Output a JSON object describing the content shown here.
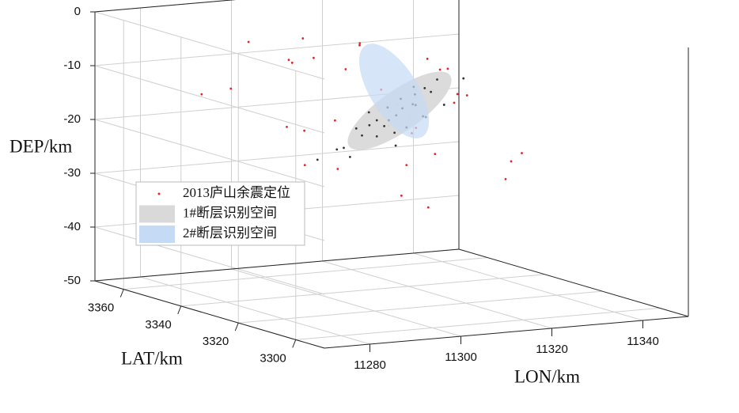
{
  "chart_data": {
    "type": "scatter3d",
    "xlabel": "LON/km",
    "ylabel": "LAT/km",
    "zlabel": "DEP/km",
    "xlim": [
      11270,
      11350
    ],
    "ylim": [
      3370,
      3290
    ],
    "zlim": [
      -50,
      0
    ],
    "xticks": [
      11280,
      11300,
      11320,
      11340
    ],
    "yticks": [
      3300,
      3320,
      3340,
      3360
    ],
    "zticks": [
      0,
      -10,
      -20,
      -30,
      -40,
      -50
    ],
    "grid": true,
    "legend": "center left",
    "series": [
      {
        "name": "2013庐山余震定位",
        "color": "#e0262b",
        "x": [
          11296,
          11305,
          11318,
          11288,
          11312,
          11325,
          11300,
          11309,
          11292,
          11315,
          11322,
          11303,
          11284,
          11311,
          11330,
          11298,
          11307,
          11319,
          11290,
          11314,
          11326,
          11302,
          11295,
          11316,
          11308,
          11335,
          11286,
          11313,
          11321,
          11299,
          11304,
          11317,
          11293,
          11310,
          11328,
          11301,
          11306,
          11320,
          11289,
          11312
        ],
        "y": [
          3335,
          3320,
          3340,
          3345,
          3328,
          3332,
          3350,
          3325,
          3338,
          3315,
          3342,
          3330,
          3355,
          3336,
          3322,
          3327,
          3345,
          3318,
          3330,
          3340,
          3310,
          3352,
          3325,
          3333,
          3338,
          3328,
          3348,
          3322,
          3335,
          3343,
          3312,
          3326,
          3334,
          3331,
          3339,
          3346,
          3324,
          3329,
          3341,
          3337
        ],
        "z": [
          -5,
          -12,
          -20,
          -3,
          -25,
          -15,
          -8,
          -30,
          -18,
          -10,
          -22,
          -2,
          -14,
          -16,
          -28,
          -6,
          -19,
          -11,
          -35,
          -13,
          -21,
          -9,
          -24,
          -17,
          -4,
          -26,
          -12,
          -32,
          -7,
          -20,
          -15,
          -23,
          -1,
          -18,
          -10,
          -27,
          -14,
          -8,
          -29,
          -16
        ]
      },
      {
        "name": "1#断层识别空间",
        "color": "#d9d9d9"
      },
      {
        "name": "2#断层识别空间",
        "color": "#c4daf5"
      },
      {
        "color": "#333333",
        "x": [
          11305,
          11312,
          11318,
          11308,
          11315,
          11302,
          11320,
          11310,
          11306,
          11314,
          11317,
          11309,
          11303,
          11311,
          11316,
          11307,
          11313,
          11319,
          11304,
          11310,
          11300,
          11322,
          11308,
          11312,
          11315,
          11306,
          11318,
          11309,
          11311,
          11314
        ],
        "y": [
          3330,
          3328,
          3335,
          3332,
          3326,
          3334,
          3330,
          3331,
          3336,
          3329,
          3333,
          3327,
          3338,
          3330,
          3328,
          3333,
          3331,
          3326,
          3335,
          3329,
          3340,
          3324,
          3332,
          3330,
          3327,
          3334,
          3329,
          3331,
          3333,
          3328
        ],
        "z": [
          -15,
          -18,
          -12,
          -20,
          -16,
          -22,
          -10,
          -17,
          -19,
          -14,
          -13,
          -21,
          -23,
          -16,
          -11,
          -18,
          -15,
          -14,
          -24,
          -19,
          -25,
          -9,
          -17,
          -13,
          -16,
          -20,
          -12,
          -18,
          -15,
          -14
        ]
      }
    ]
  }
}
